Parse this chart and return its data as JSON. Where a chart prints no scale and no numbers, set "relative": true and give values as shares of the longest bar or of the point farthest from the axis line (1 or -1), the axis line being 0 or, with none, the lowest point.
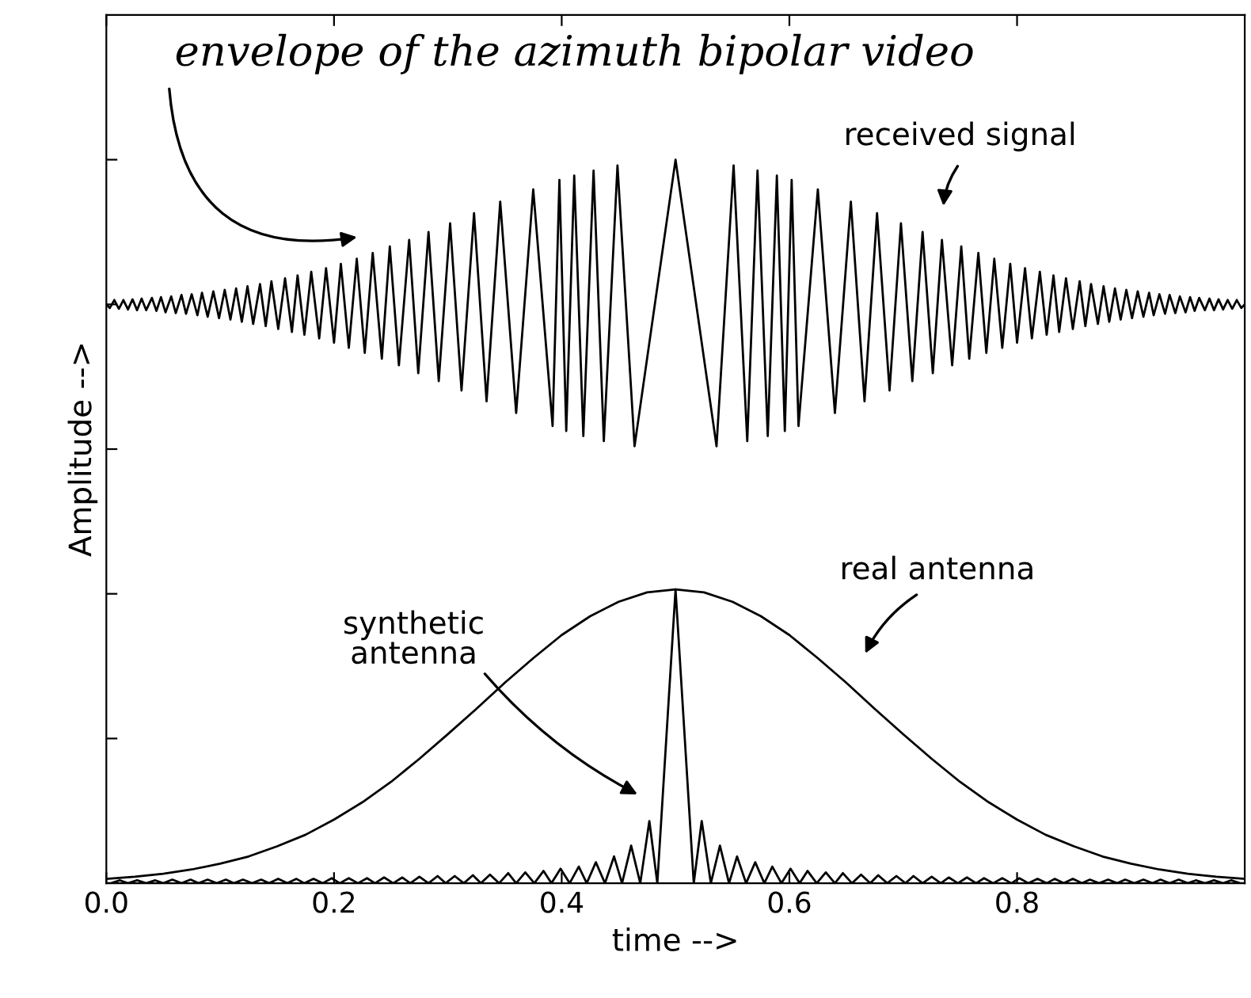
{
  "chart_data": {
    "type": "line",
    "relative": true,
    "xlabel": "time -->",
    "ylabel": "Amplitude -->",
    "xlim": [
      0,
      1
    ],
    "xticks": [
      {
        "value": 0,
        "label": "0.0"
      },
      {
        "value": 0.2,
        "label": "0.2"
      },
      {
        "value": 0.4,
        "label": "0.4"
      },
      {
        "value": 0.6,
        "label": "0.6"
      },
      {
        "value": 0.8,
        "label": "0.8"
      }
    ],
    "tick_labels": "x",
    "grid": false,
    "legend": false,
    "marker": "none",
    "line_style": "solid",
    "annotations": [
      "envelope of the azimuth bipolar video",
      "received signal",
      "real antenna",
      "synthetic antenna"
    ],
    "series": [
      {
        "color": "#000000",
        "x": [
          0.0,
          0.003,
          0.007,
          0.011,
          0.015,
          0.019,
          0.023,
          0.027,
          0.031,
          0.035,
          0.04,
          0.044,
          0.048,
          0.052,
          0.057,
          0.061,
          0.066,
          0.07,
          0.075,
          0.08,
          0.084,
          0.089,
          0.094,
          0.099,
          0.104,
          0.109,
          0.114,
          0.119,
          0.124,
          0.129,
          0.135,
          0.14,
          0.145,
          0.151,
          0.157,
          0.163,
          0.168,
          0.174,
          0.18,
          0.187,
          0.193,
          0.2,
          0.206,
          0.213,
          0.22,
          0.227,
          0.234,
          0.242,
          0.249,
          0.257,
          0.266,
          0.274,
          0.283,
          0.292,
          0.302,
          0.312,
          0.323,
          0.334,
          0.346,
          0.36,
          0.375,
          0.392,
          0.398,
          0.404,
          0.411,
          0.419,
          0.428,
          0.437,
          0.449,
          0.464,
          0.5,
          0.536,
          0.551,
          0.563,
          0.572,
          0.581,
          0.589,
          0.596,
          0.602,
          0.608,
          0.625,
          0.64,
          0.654,
          0.666,
          0.677,
          0.688,
          0.698,
          0.708,
          0.717,
          0.726,
          0.734,
          0.743,
          0.751,
          0.758,
          0.766,
          0.773,
          0.78,
          0.787,
          0.794,
          0.8,
          0.807,
          0.813,
          0.82,
          0.826,
          0.832,
          0.837,
          0.843,
          0.849,
          0.855,
          0.86,
          0.865,
          0.871,
          0.876,
          0.881,
          0.886,
          0.891,
          0.896,
          0.901,
          0.906,
          0.911,
          0.916,
          0.92,
          0.925,
          0.93,
          0.934,
          0.939,
          0.943,
          0.948,
          0.952,
          0.956,
          0.96,
          0.965,
          0.969,
          0.973,
          0.977,
          0.981,
          0.985,
          0.989,
          0.993,
          0.997,
          1.0
        ],
        "values": [
          0.8,
          0.795,
          0.806,
          0.794,
          0.806,
          0.793,
          0.807,
          0.792,
          0.808,
          0.792,
          0.809,
          0.791,
          0.81,
          0.789,
          0.811,
          0.788,
          0.813,
          0.787,
          0.814,
          0.785,
          0.816,
          0.783,
          0.818,
          0.781,
          0.82,
          0.779,
          0.822,
          0.776,
          0.825,
          0.773,
          0.828,
          0.77,
          0.832,
          0.766,
          0.836,
          0.762,
          0.84,
          0.758,
          0.845,
          0.753,
          0.85,
          0.747,
          0.856,
          0.74,
          0.863,
          0.733,
          0.871,
          0.725,
          0.88,
          0.716,
          0.889,
          0.705,
          0.9,
          0.694,
          0.912,
          0.681,
          0.926,
          0.666,
          0.942,
          0.65,
          0.959,
          0.632,
          0.972,
          0.625,
          0.978,
          0.618,
          0.985,
          0.611,
          0.992,
          0.604,
          1.0,
          0.604,
          0.992,
          0.611,
          0.985,
          0.618,
          0.978,
          0.625,
          0.972,
          0.632,
          0.959,
          0.65,
          0.942,
          0.666,
          0.926,
          0.681,
          0.912,
          0.694,
          0.9,
          0.705,
          0.889,
          0.716,
          0.88,
          0.725,
          0.871,
          0.733,
          0.863,
          0.74,
          0.856,
          0.747,
          0.85,
          0.753,
          0.845,
          0.758,
          0.84,
          0.762,
          0.836,
          0.766,
          0.832,
          0.77,
          0.828,
          0.773,
          0.825,
          0.776,
          0.822,
          0.779,
          0.82,
          0.781,
          0.818,
          0.783,
          0.816,
          0.785,
          0.814,
          0.787,
          0.813,
          0.788,
          0.811,
          0.789,
          0.81,
          0.791,
          0.809,
          0.792,
          0.808,
          0.792,
          0.807,
          0.793,
          0.806,
          0.794,
          0.806,
          0.795,
          0.8
        ]
      },
      {
        "color": "#000000",
        "x": [
          0.0,
          0.025,
          0.05,
          0.075,
          0.1,
          0.125,
          0.15,
          0.175,
          0.2,
          0.225,
          0.25,
          0.275,
          0.3,
          0.325,
          0.35,
          0.375,
          0.4,
          0.425,
          0.45,
          0.475,
          0.5,
          0.525,
          0.55,
          0.575,
          0.6,
          0.625,
          0.65,
          0.675,
          0.7,
          0.725,
          0.75,
          0.775,
          0.8,
          0.825,
          0.85,
          0.875,
          0.9,
          0.925,
          0.95,
          0.975,
          1.0
        ],
        "values": [
          0.006,
          0.009,
          0.013,
          0.019,
          0.027,
          0.037,
          0.051,
          0.067,
          0.088,
          0.112,
          0.14,
          0.172,
          0.206,
          0.241,
          0.277,
          0.311,
          0.343,
          0.369,
          0.389,
          0.402,
          0.406,
          0.402,
          0.389,
          0.369,
          0.343,
          0.311,
          0.277,
          0.241,
          0.206,
          0.172,
          0.14,
          0.112,
          0.088,
          0.067,
          0.051,
          0.037,
          0.027,
          0.019,
          0.013,
          0.009,
          0.006
        ]
      },
      {
        "color": "#000000",
        "x": [
          0.0,
          0.004,
          0.012,
          0.019,
          0.027,
          0.035,
          0.043,
          0.05,
          0.058,
          0.066,
          0.074,
          0.081,
          0.089,
          0.097,
          0.105,
          0.112,
          0.12,
          0.128,
          0.136,
          0.143,
          0.151,
          0.159,
          0.167,
          0.174,
          0.182,
          0.19,
          0.198,
          0.205,
          0.213,
          0.221,
          0.229,
          0.236,
          0.244,
          0.252,
          0.26,
          0.267,
          0.275,
          0.283,
          0.291,
          0.298,
          0.306,
          0.314,
          0.322,
          0.329,
          0.337,
          0.345,
          0.353,
          0.36,
          0.368,
          0.376,
          0.384,
          0.391,
          0.399,
          0.407,
          0.415,
          0.422,
          0.43,
          0.438,
          0.446,
          0.453,
          0.461,
          0.469,
          0.477,
          0.484,
          0.5,
          0.516,
          0.523,
          0.531,
          0.539,
          0.547,
          0.554,
          0.562,
          0.57,
          0.578,
          0.585,
          0.593,
          0.601,
          0.609,
          0.616,
          0.624,
          0.632,
          0.64,
          0.647,
          0.655,
          0.663,
          0.671,
          0.678,
          0.686,
          0.694,
          0.702,
          0.709,
          0.717,
          0.725,
          0.733,
          0.74,
          0.748,
          0.756,
          0.764,
          0.771,
          0.779,
          0.787,
          0.795,
          0.802,
          0.81,
          0.818,
          0.826,
          0.833,
          0.841,
          0.849,
          0.857,
          0.864,
          0.872,
          0.88,
          0.888,
          0.895,
          0.903,
          0.911,
          0.919,
          0.926,
          0.934,
          0.942,
          0.95,
          0.957,
          0.965,
          0.973,
          0.981,
          0.988,
          0.996,
          1.0
        ],
        "values": [
          0,
          0,
          0.004,
          0,
          0.004,
          0,
          0.004,
          0,
          0.005,
          0,
          0.005,
          0,
          0.005,
          0,
          0.005,
          0,
          0.005,
          0,
          0.005,
          0,
          0.006,
          0,
          0.006,
          0,
          0.006,
          0,
          0.007,
          0,
          0.007,
          0,
          0.007,
          0,
          0.008,
          0,
          0.008,
          0,
          0.009,
          0,
          0.01,
          0,
          0.01,
          0,
          0.011,
          0,
          0.012,
          0,
          0.014,
          0,
          0.015,
          0,
          0.017,
          0,
          0.02,
          0,
          0.023,
          0,
          0.029,
          0,
          0.037,
          0,
          0.052,
          0,
          0.086,
          0,
          0.406,
          0,
          0.086,
          0,
          0.052,
          0,
          0.037,
          0,
          0.029,
          0,
          0.023,
          0,
          0.02,
          0,
          0.017,
          0,
          0.015,
          0,
          0.014,
          0,
          0.012,
          0,
          0.011,
          0,
          0.01,
          0,
          0.01,
          0,
          0.009,
          0,
          0.008,
          0,
          0.008,
          0,
          0.007,
          0,
          0.007,
          0,
          0.007,
          0,
          0.006,
          0,
          0.006,
          0,
          0.006,
          0,
          0.005,
          0,
          0.005,
          0,
          0.005,
          0,
          0.005,
          0,
          0.005,
          0,
          0.005,
          0,
          0.004,
          0,
          0.004,
          0,
          0.004,
          0,
          0
        ]
      }
    ]
  }
}
